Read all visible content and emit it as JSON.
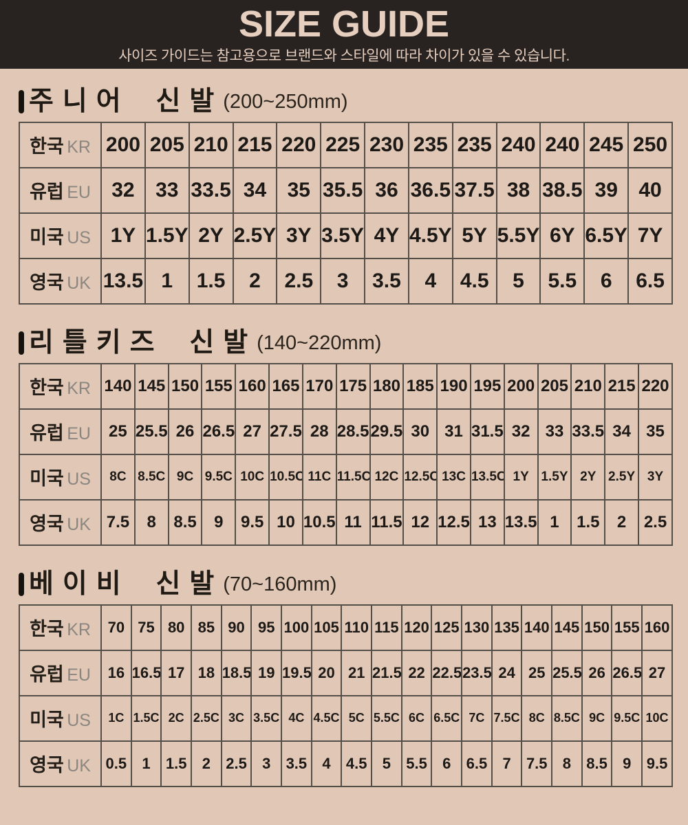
{
  "header": {
    "title": "SIZE GUIDE",
    "subtitle": "사이즈 가이드는 참고용으로 브랜드와 스타일에 따라 차이가 있을 수 있습니다."
  },
  "colors": {
    "page_bg": "#e1c7b5",
    "header_bg": "#282221",
    "header_text": "#e6cfbf",
    "cell_text": "#1d1916",
    "label_gray": "#8c8680",
    "border": "#544e48"
  },
  "row_labels": [
    {
      "korean": "한국",
      "code": "KR"
    },
    {
      "korean": "유럽",
      "code": "EU"
    },
    {
      "korean": "미국",
      "code": "US"
    },
    {
      "korean": "영국",
      "code": "UK"
    }
  ],
  "sections": [
    {
      "title": "주니어 신발",
      "range": "(200~250mm)",
      "rows": [
        [
          "200",
          "205",
          "210",
          "215",
          "220",
          "225",
          "230",
          "235",
          "235",
          "240",
          "240",
          "245",
          "250"
        ],
        [
          "32",
          "33",
          "33.5",
          "34",
          "35",
          "35.5",
          "36",
          "36.5",
          "37.5",
          "38",
          "38.5",
          "39",
          "40"
        ],
        [
          "1Y",
          "1.5Y",
          "2Y",
          "2.5Y",
          "3Y",
          "3.5Y",
          "4Y",
          "4.5Y",
          "5Y",
          "5.5Y",
          "6Y",
          "6.5Y",
          "7Y"
        ],
        [
          "13.5",
          "1",
          "1.5",
          "2",
          "2.5",
          "3",
          "3.5",
          "4",
          "4.5",
          "5",
          "5.5",
          "6",
          "6.5"
        ]
      ]
    },
    {
      "title": "리틀키즈 신발",
      "range": "(140~220mm)",
      "rows": [
        [
          "140",
          "145",
          "150",
          "155",
          "160",
          "165",
          "170",
          "175",
          "180",
          "185",
          "190",
          "195",
          "200",
          "205",
          "210",
          "215",
          "220"
        ],
        [
          "25",
          "25.5",
          "26",
          "26.5",
          "27",
          "27.5",
          "28",
          "28.5",
          "29.5",
          "30",
          "31",
          "31.5",
          "32",
          "33",
          "33.5",
          "34",
          "35"
        ],
        [
          "8C",
          "8.5C",
          "9C",
          "9.5C",
          "10C",
          "10.5C",
          "11C",
          "11.5C",
          "12C",
          "12.5C",
          "13C",
          "13.5C",
          "1Y",
          "1.5Y",
          "2Y",
          "2.5Y",
          "3Y"
        ],
        [
          "7.5",
          "8",
          "8.5",
          "9",
          "9.5",
          "10",
          "10.5",
          "11",
          "11.5",
          "12",
          "12.5",
          "13",
          "13.5",
          "1",
          "1.5",
          "2",
          "2.5"
        ]
      ]
    },
    {
      "title": "베이비 신발",
      "range": "(70~160mm)",
      "rows": [
        [
          "70",
          "75",
          "80",
          "85",
          "90",
          "95",
          "100",
          "105",
          "110",
          "115",
          "120",
          "125",
          "130",
          "135",
          "140",
          "145",
          "150",
          "155",
          "160"
        ],
        [
          "16",
          "16.5",
          "17",
          "18",
          "18.5",
          "19",
          "19.5",
          "20",
          "21",
          "21.5",
          "22",
          "22.5",
          "23.5",
          "24",
          "25",
          "25.5",
          "26",
          "26.5",
          "27"
        ],
        [
          "1C",
          "1.5C",
          "2C",
          "2.5C",
          "3C",
          "3.5C",
          "4C",
          "4.5C",
          "5C",
          "5.5C",
          "6C",
          "6.5C",
          "7C",
          "7.5C",
          "8C",
          "8.5C",
          "9C",
          "9.5C",
          "10C"
        ],
        [
          "0.5",
          "1",
          "1.5",
          "2",
          "2.5",
          "3",
          "3.5",
          "4",
          "4.5",
          "5",
          "5.5",
          "6",
          "6.5",
          "7",
          "7.5",
          "8",
          "8.5",
          "9",
          "9.5"
        ]
      ]
    }
  ]
}
